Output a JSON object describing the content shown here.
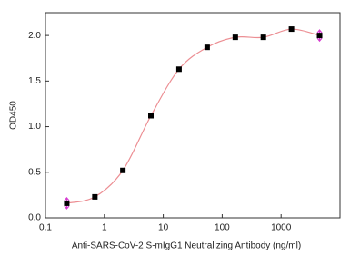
{
  "chart_data": {
    "type": "scatter",
    "x_label": "Anti-SARS-CoV-2 S-mIgG1 Neutralizing Antibody (ng/ml)",
    "y_label": "OD450",
    "x": [
      0.23,
      0.69,
      2.06,
      6.17,
      18.5,
      55.6,
      167,
      500,
      1500,
      4500
    ],
    "series": [
      {
        "color": "#000000",
        "curve_color": "#ec8e93",
        "values": [
          0.16,
          0.23,
          0.52,
          1.12,
          1.63,
          1.87,
          1.98,
          1.98,
          2.07,
          2.0
        ],
        "errors": [
          0.06,
          null,
          null,
          null,
          null,
          null,
          null,
          null,
          null,
          0.06
        ],
        "error_color": "#d63bd0"
      }
    ],
    "log_x": true,
    "xlim": [
      0.1,
      10000
    ],
    "xticks": [
      0.1,
      1,
      10,
      100,
      1000
    ],
    "ylim": [
      0,
      2.25
    ],
    "yticks": [
      {
        "value": 0,
        "label": "0.0"
      },
      0.5,
      {
        "value": 1,
        "label": "1.0"
      },
      1.5,
      {
        "value": 2,
        "label": "2.0"
      }
    ]
  }
}
